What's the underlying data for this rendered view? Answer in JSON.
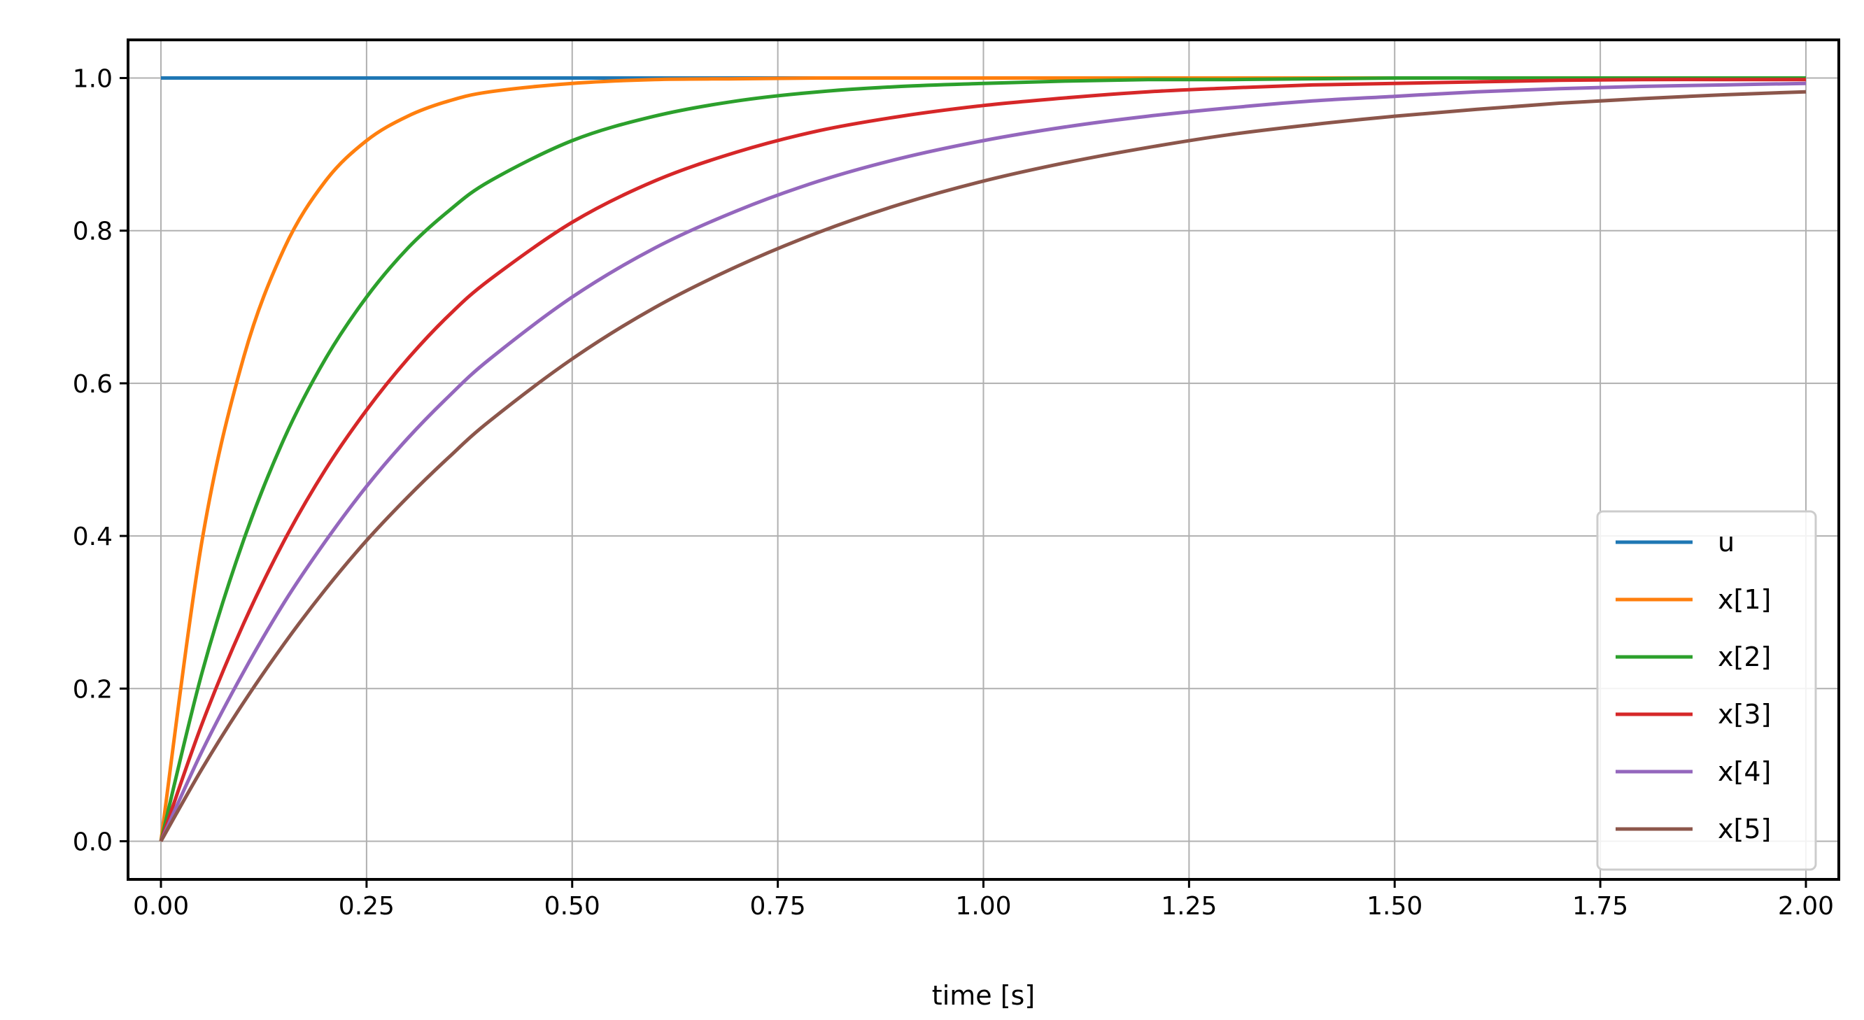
{
  "chart_data": {
    "type": "line",
    "title": "",
    "xlabel": "time [s]",
    "ylabel": "",
    "xlim": [
      -0.04,
      2.04
    ],
    "ylim": [
      -0.05,
      1.05
    ],
    "xticks": [
      0.0,
      0.25,
      0.5,
      0.75,
      1.0,
      1.25,
      1.5,
      1.75,
      2.0
    ],
    "xtick_labels": [
      "0.00",
      "0.25",
      "0.50",
      "0.75",
      "1.00",
      "1.25",
      "1.50",
      "1.75",
      "2.00"
    ],
    "yticks": [
      0.0,
      0.2,
      0.4,
      0.6,
      0.8,
      1.0
    ],
    "ytick_labels": [
      "0.0",
      "0.2",
      "0.4",
      "0.6",
      "0.8",
      "1.0"
    ],
    "grid": true,
    "legend_position": "lower-right",
    "x": [
      0.0,
      0.05,
      0.1,
      0.15,
      0.2,
      0.25,
      0.3,
      0.35,
      0.4,
      0.5,
      0.6,
      0.7,
      0.8,
      0.9,
      1.0,
      1.1,
      1.2,
      1.3,
      1.4,
      1.5,
      1.6,
      1.7,
      1.8,
      1.9,
      2.0
    ],
    "series": [
      {
        "name": "u",
        "color": "#1f77b4",
        "values": [
          1.0,
          1.0,
          1.0,
          1.0,
          1.0,
          1.0,
          1.0,
          1.0,
          1.0,
          1.0,
          1.0,
          1.0,
          1.0,
          1.0,
          1.0,
          1.0,
          1.0,
          1.0,
          1.0,
          1.0,
          1.0,
          1.0,
          1.0,
          1.0,
          1.0
        ]
      },
      {
        "name": "x[1]",
        "color": "#ff7f0e",
        "values": [
          0.0,
          0.394,
          0.632,
          0.777,
          0.865,
          0.918,
          0.95,
          0.97,
          0.982,
          0.993,
          0.998,
          0.999,
          1.0,
          1.0,
          1.0,
          1.0,
          1.0,
          1.0,
          1.0,
          1.0,
          1.0,
          1.0,
          1.0,
          1.0,
          1.0
        ]
      },
      {
        "name": "x[2]",
        "color": "#2ca02c",
        "values": [
          0.0,
          0.221,
          0.393,
          0.528,
          0.632,
          0.713,
          0.777,
          0.826,
          0.865,
          0.918,
          0.95,
          0.97,
          0.982,
          0.989,
          0.993,
          0.996,
          0.998,
          0.998,
          0.999,
          1.0,
          1.0,
          1.0,
          1.0,
          1.0,
          1.0
        ]
      },
      {
        "name": "x[3]",
        "color": "#d62728",
        "values": [
          0.0,
          0.154,
          0.284,
          0.394,
          0.487,
          0.565,
          0.632,
          0.689,
          0.736,
          0.811,
          0.865,
          0.903,
          0.931,
          0.95,
          0.964,
          0.974,
          0.982,
          0.987,
          0.991,
          0.993,
          0.995,
          0.997,
          0.998,
          0.998,
          0.998
        ]
      },
      {
        "name": "x[4]",
        "color": "#9467bd",
        "values": [
          0.0,
          0.118,
          0.221,
          0.313,
          0.393,
          0.465,
          0.528,
          0.583,
          0.632,
          0.713,
          0.777,
          0.826,
          0.865,
          0.895,
          0.918,
          0.936,
          0.95,
          0.961,
          0.97,
          0.976,
          0.982,
          0.986,
          0.989,
          0.991,
          0.993
        ]
      },
      {
        "name": "x[5]",
        "color": "#8c564b",
        "values": [
          0.0,
          0.095,
          0.181,
          0.259,
          0.33,
          0.394,
          0.451,
          0.503,
          0.551,
          0.632,
          0.699,
          0.753,
          0.798,
          0.835,
          0.865,
          0.889,
          0.909,
          0.926,
          0.939,
          0.95,
          0.959,
          0.967,
          0.973,
          0.978,
          0.982
        ]
      }
    ]
  }
}
